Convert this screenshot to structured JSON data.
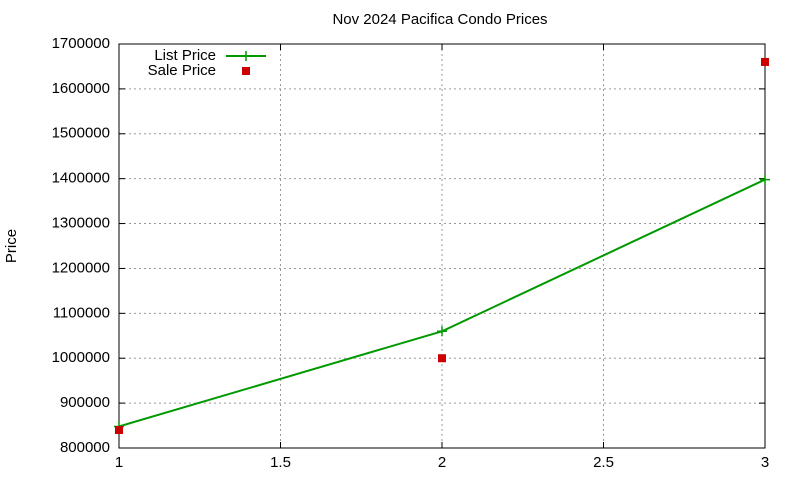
{
  "chart_data": {
    "type": "line",
    "title": "Nov 2024 Pacifica Condo Prices",
    "y_label": "Price",
    "x": [
      1,
      2,
      3
    ],
    "series": [
      {
        "name": "List Price",
        "color": "#009900",
        "style": "linespoints",
        "values": [
          848000,
          1060000,
          1398000
        ]
      },
      {
        "name": "Sale Price",
        "color": "#cc0000",
        "style": "points",
        "values": [
          840000,
          1000000,
          1660000
        ]
      }
    ],
    "xlim": [
      1,
      3
    ],
    "xticks": [
      1,
      1.5,
      2,
      2.5,
      3
    ],
    "ylim": [
      800000,
      1700000
    ],
    "yticks": [
      800000,
      900000,
      1000000,
      1100000,
      1200000,
      1300000,
      1400000,
      1500000,
      1600000,
      1700000
    ],
    "grid": true,
    "legend": "top-left"
  }
}
